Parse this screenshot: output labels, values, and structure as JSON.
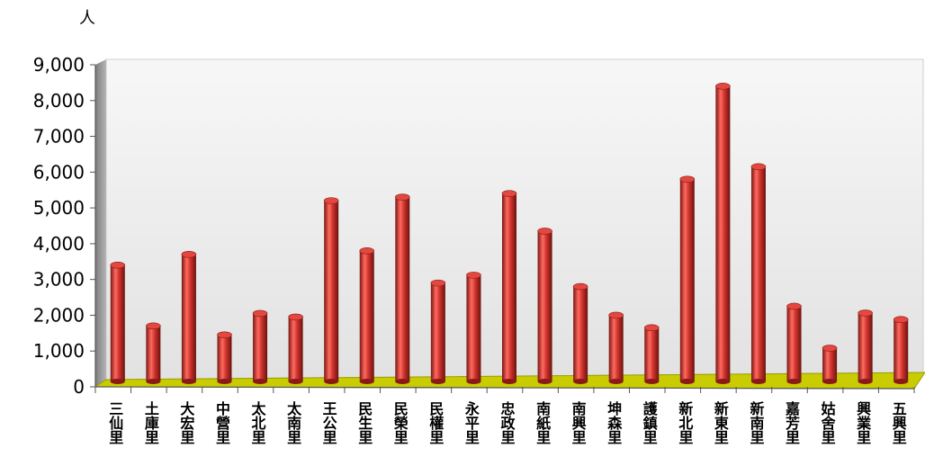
{
  "chart_data": {
    "type": "bar",
    "title": "",
    "ylabel": "人",
    "xlabel": "",
    "ylim": [
      0,
      9000
    ],
    "yticks": [
      "0",
      "1,000",
      "2,000",
      "3,000",
      "4,000",
      "5,000",
      "6,000",
      "7,000",
      "8,000",
      "9,000"
    ],
    "categories": [
      "三仙里",
      "土庫里",
      "大宏里",
      "中營里",
      "太北里",
      "太南里",
      "王公里",
      "民生里",
      "民榮里",
      "民權里",
      "永平里",
      "忠政里",
      "南紙里",
      "南興里",
      "坤森里",
      "護鎮里",
      "新北里",
      "新東里",
      "新南里",
      "嘉芳里",
      "姑舍里",
      "興業里",
      "五興里"
    ],
    "values": [
      3300,
      1600,
      3600,
      1350,
      1950,
      1850,
      5100,
      3700,
      5200,
      2800,
      3020,
      5300,
      4250,
      2700,
      1900,
      1550,
      5700,
      8300,
      6050,
      2150,
      980,
      1960,
      1780
    ],
    "grid": false,
    "legend": "none",
    "colors": {
      "bar": "#c0302b",
      "bar_light": "#ff7a70",
      "bar_dark": "#7a1612",
      "floor": "#c9cc00",
      "floor_dark": "#8e9000",
      "back_wall": "#ececec",
      "side_wall": "#9a9a9a"
    }
  }
}
